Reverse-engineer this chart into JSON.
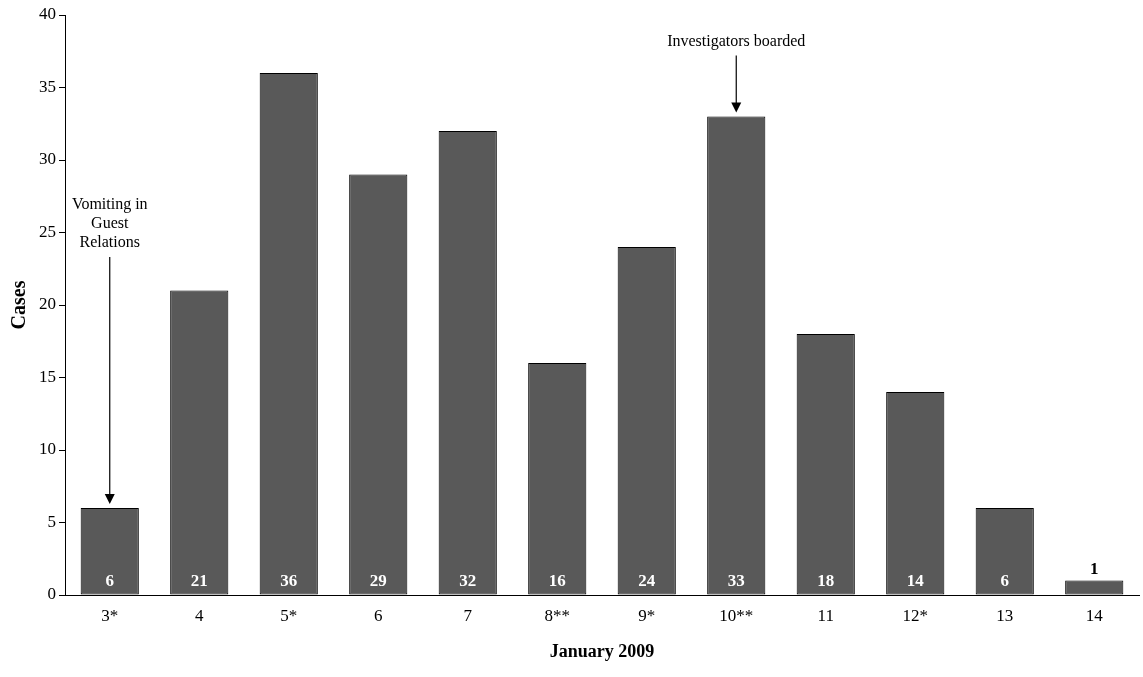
{
  "chart_data": {
    "type": "bar",
    "categories": [
      "3*",
      "4",
      "5*",
      "6",
      "7",
      "8**",
      "9*",
      "10**",
      "11",
      "12*",
      "13",
      "14"
    ],
    "values": [
      6,
      21,
      36,
      29,
      32,
      16,
      24,
      33,
      18,
      14,
      6,
      1
    ],
    "color": "#595959",
    "ylim": [
      0,
      40
    ],
    "yticks": [
      0,
      5,
      10,
      15,
      20,
      25,
      30,
      35,
      40
    ],
    "xlabel": "January 2009",
    "ylabel": "Cases",
    "grid": false,
    "legend": false,
    "data_labels": true,
    "annotations": [
      "Vomiting in Guest Relations",
      "Investigators boarded"
    ]
  }
}
